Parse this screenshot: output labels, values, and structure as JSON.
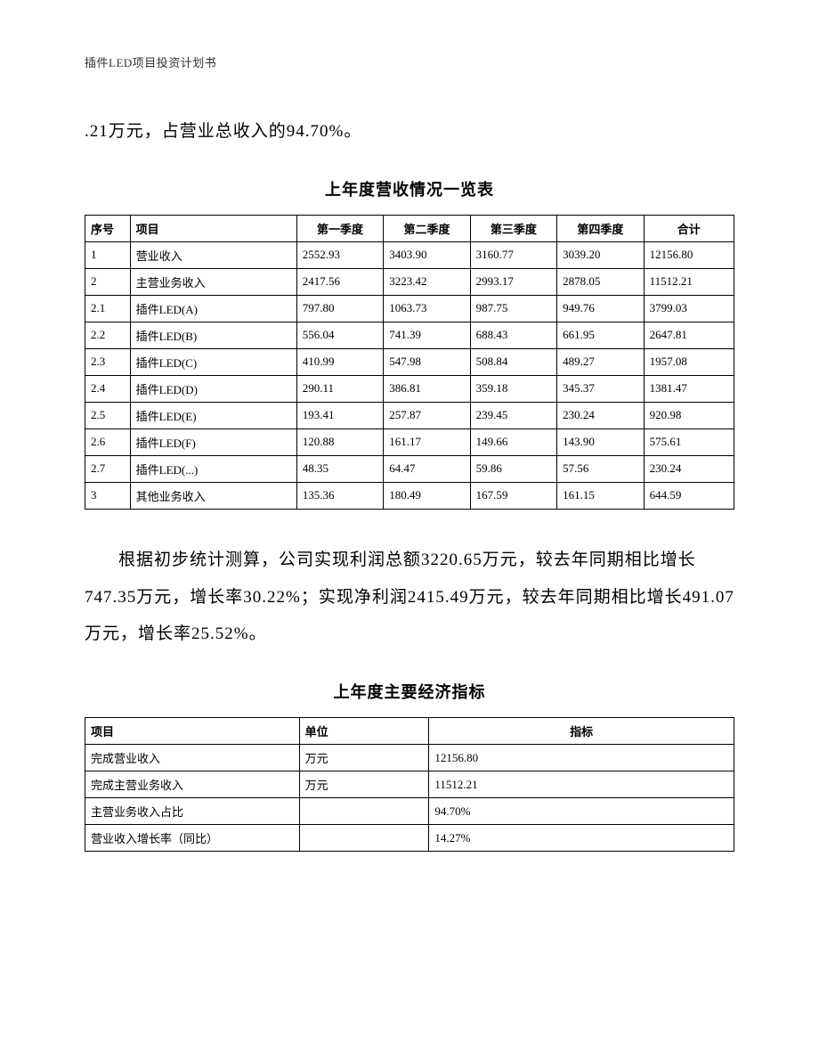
{
  "header": "插件LED项目投资计划书",
  "para1": ".21万元，占营业总收入的94.70%。",
  "table1": {
    "title": "上年度营收情况一览表",
    "columns": [
      "序号",
      "项目",
      "第一季度",
      "第二季度",
      "第三季度",
      "第四季度",
      "合计"
    ],
    "rows": [
      [
        "1",
        "营业收入",
        "2552.93",
        "3403.90",
        "3160.77",
        "3039.20",
        "12156.80"
      ],
      [
        "2",
        "主营业务收入",
        "2417.56",
        "3223.42",
        "2993.17",
        "2878.05",
        "11512.21"
      ],
      [
        "2.1",
        "插件LED(A)",
        "797.80",
        "1063.73",
        "987.75",
        "949.76",
        "3799.03"
      ],
      [
        "2.2",
        "插件LED(B)",
        "556.04",
        "741.39",
        "688.43",
        "661.95",
        "2647.81"
      ],
      [
        "2.3",
        "插件LED(C)",
        "410.99",
        "547.98",
        "508.84",
        "489.27",
        "1957.08"
      ],
      [
        "2.4",
        "插件LED(D)",
        "290.11",
        "386.81",
        "359.18",
        "345.37",
        "1381.47"
      ],
      [
        "2.5",
        "插件LED(E)",
        "193.41",
        "257.87",
        "239.45",
        "230.24",
        "920.98"
      ],
      [
        "2.6",
        "插件LED(F)",
        "120.88",
        "161.17",
        "149.66",
        "143.90",
        "575.61"
      ],
      [
        "2.7",
        "插件LED(...)",
        "48.35",
        "64.47",
        "59.86",
        "57.56",
        "230.24"
      ],
      [
        "3",
        "其他业务收入",
        "135.36",
        "180.49",
        "167.59",
        "161.15",
        "644.59"
      ]
    ]
  },
  "para2": "根据初步统计测算，公司实现利润总额3220.65万元，较去年同期相比增长747.35万元，增长率30.22%；实现净利润2415.49万元，较去年同期相比增长491.07万元，增长率25.52%。",
  "table2": {
    "title": "上年度主要经济指标",
    "columns": [
      "项目",
      "单位",
      "指标"
    ],
    "col_align": [
      "left",
      "left",
      "center"
    ],
    "rows": [
      [
        "完成营业收入",
        "万元",
        "12156.80"
      ],
      [
        "完成主营业务收入",
        "万元",
        "11512.21"
      ],
      [
        "主营业务收入占比",
        "",
        "94.70%"
      ],
      [
        "营业收入增长率（同比）",
        "",
        "14.27%"
      ]
    ]
  }
}
